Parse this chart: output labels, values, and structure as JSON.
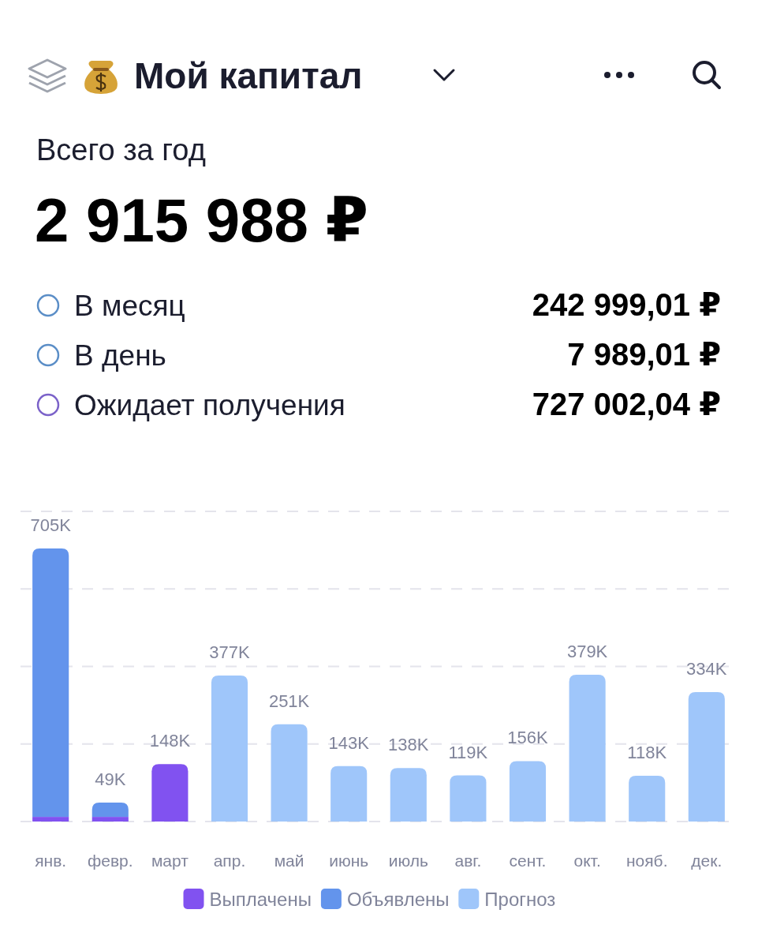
{
  "chart_data": {
    "type": "bar",
    "title": "Мой капитал",
    "subtitle": "Всего за год",
    "annotations": [
      "2 915 988 ₽",
      "В месяц",
      "242 999,01 ₽",
      "В день",
      "7 989,01 ₽",
      "Ожидает получения",
      "727 002,04 ₽"
    ],
    "categories": [
      "янв.",
      "февр.",
      "март",
      "апр.",
      "май",
      "июнь",
      "июль",
      "авг.",
      "сент.",
      "окт.",
      "нояб.",
      "дек."
    ],
    "stacked": true,
    "series": [
      {
        "name": "Выплачены",
        "color": "#8152f0",
        "values": [
          12,
          12,
          148,
          null,
          null,
          null,
          null,
          null,
          null,
          null,
          null,
          null
        ],
        "value_labels": [
          null,
          null,
          "148K",
          null,
          null,
          null,
          null,
          null,
          null,
          null,
          null,
          null
        ]
      },
      {
        "name": "Объявлены",
        "color": "#6394ec",
        "values": [
          693,
          37,
          null,
          null,
          null,
          null,
          null,
          null,
          null,
          null,
          null,
          null
        ]
      },
      {
        "name": "Прогноз",
        "color": "#9fc6fa",
        "values": [
          null,
          null,
          null,
          377,
          251,
          143,
          138,
          119,
          156,
          379,
          118,
          334
        ],
        "value_labels": [
          null,
          null,
          null,
          "377K",
          "251K",
          "143K",
          "138K",
          "119K",
          "156K",
          "379K",
          "118K",
          "334K"
        ]
      }
    ],
    "totals": [
      "705K",
      "49K",
      null,
      null,
      null,
      null,
      null,
      null,
      null,
      null,
      null,
      null
    ],
    "grid": "y",
    "legend": "bottom"
  }
}
